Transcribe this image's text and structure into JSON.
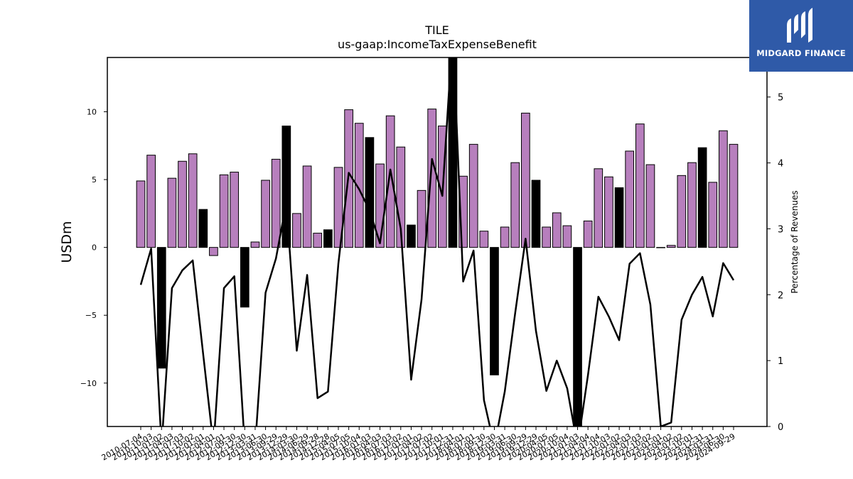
{
  "chart_data": {
    "type": "bar",
    "title": "TILE",
    "subtitle": "us-gaap:IncomeTaxExpenseBenefit",
    "ylabel": "USDm",
    "y2label": "Percentage of Revenues",
    "ylim": [
      -13.2,
      14.0
    ],
    "y2lim": [
      0,
      5.6
    ],
    "yticks": [
      -10,
      -5,
      0,
      5,
      10
    ],
    "y2ticks": [
      0,
      1,
      2,
      3,
      4,
      5
    ],
    "categories": [
      "2010-07-04",
      "2010-10-03",
      "2011-01-02",
      "2011-04-03",
      "2011-07-03",
      "2011-10-02",
      "2012-01-01",
      "2012-04-01",
      "2012-07-01",
      "2012-09-30",
      "2012-12-30",
      "2013-03-31",
      "2013-06-30",
      "2013-09-29",
      "2013-12-29",
      "2014-03-30",
      "2014-06-29",
      "2014-09-28",
      "2014-12-28",
      "2015-04-05",
      "2015-07-05",
      "2015-10-04",
      "2016-01-03",
      "2016-04-03",
      "2016-07-03",
      "2016-10-02",
      "2017-01-01",
      "2017-04-02",
      "2017-07-02",
      "2017-10-01",
      "2017-12-31",
      "2018-04-01",
      "2018-07-01",
      "2018-09-30",
      "2018-12-30",
      "2019-03-31",
      "2019-06-30",
      "2019-09-29",
      "2019-12-29",
      "2020-04-05",
      "2020-07-05",
      "2020-10-04",
      "2021-01-03",
      "2021-04-04",
      "2021-07-04",
      "2021-10-03",
      "2022-01-02",
      "2022-04-03",
      "2022-07-03",
      "2022-10-02",
      "2023-01-01",
      "2023-04-02",
      "2023-07-02",
      "2023-10-01",
      "2023-12-31",
      "2024-03-31",
      "2024-06-30",
      "2024-09-29"
    ],
    "values": [
      4.9,
      6.8,
      -8.9,
      5.1,
      6.35,
      6.9,
      2.8,
      -0.6,
      5.35,
      5.55,
      -4.4,
      0.4,
      4.95,
      6.5,
      8.95,
      2.5,
      6.0,
      1.05,
      1.3,
      5.9,
      10.15,
      9.15,
      8.1,
      6.15,
      9.7,
      7.4,
      1.65,
      4.2,
      10.2,
      8.95,
      14.5,
      5.25,
      7.6,
      1.2,
      -9.4,
      1.5,
      6.25,
      9.9,
      4.95,
      1.5,
      2.55,
      1.6,
      -14.0,
      1.95,
      5.8,
      5.2,
      4.4,
      7.1,
      9.1,
      6.1,
      0.0,
      0.15,
      5.3,
      6.25,
      7.35,
      4.8,
      8.6,
      7.6
    ],
    "highlight": [
      false,
      false,
      true,
      false,
      false,
      false,
      true,
      false,
      false,
      false,
      true,
      false,
      false,
      false,
      true,
      false,
      false,
      false,
      true,
      false,
      false,
      false,
      true,
      false,
      false,
      false,
      true,
      false,
      false,
      false,
      true,
      false,
      false,
      false,
      true,
      false,
      false,
      false,
      true,
      false,
      false,
      false,
      true,
      false,
      false,
      false,
      true,
      false,
      false,
      false,
      false,
      false,
      false,
      false,
      true,
      false,
      false,
      false
    ],
    "line_pct": [
      2.15,
      2.7,
      -0.3,
      2.1,
      2.37,
      2.52,
      1.1,
      -0.3,
      2.1,
      2.28,
      -0.3,
      -0.3,
      2.03,
      2.55,
      3.4,
      1.15,
      2.3,
      0.43,
      0.53,
      2.47,
      3.85,
      3.6,
      3.28,
      2.78,
      3.9,
      3.0,
      0.71,
      1.93,
      4.06,
      3.5,
      6.0,
      2.2,
      2.67,
      0.4,
      -0.3,
      0.53,
      1.72,
      2.85,
      1.45,
      0.54,
      1.0,
      0.58,
      -0.3,
      0.78,
      1.97,
      1.67,
      1.31,
      2.47,
      2.63,
      1.85,
      0.0,
      0.06,
      1.62,
      2.0,
      2.27,
      1.67,
      2.48,
      2.22
    ],
    "colors": {
      "bar": "#b77fbd",
      "highlight_bar": "#000000",
      "line": "#000000"
    },
    "grid": false,
    "legend": "none"
  },
  "logo": {
    "text": "MIDGARD FINANCE",
    "bg": "#2f5aa8"
  }
}
